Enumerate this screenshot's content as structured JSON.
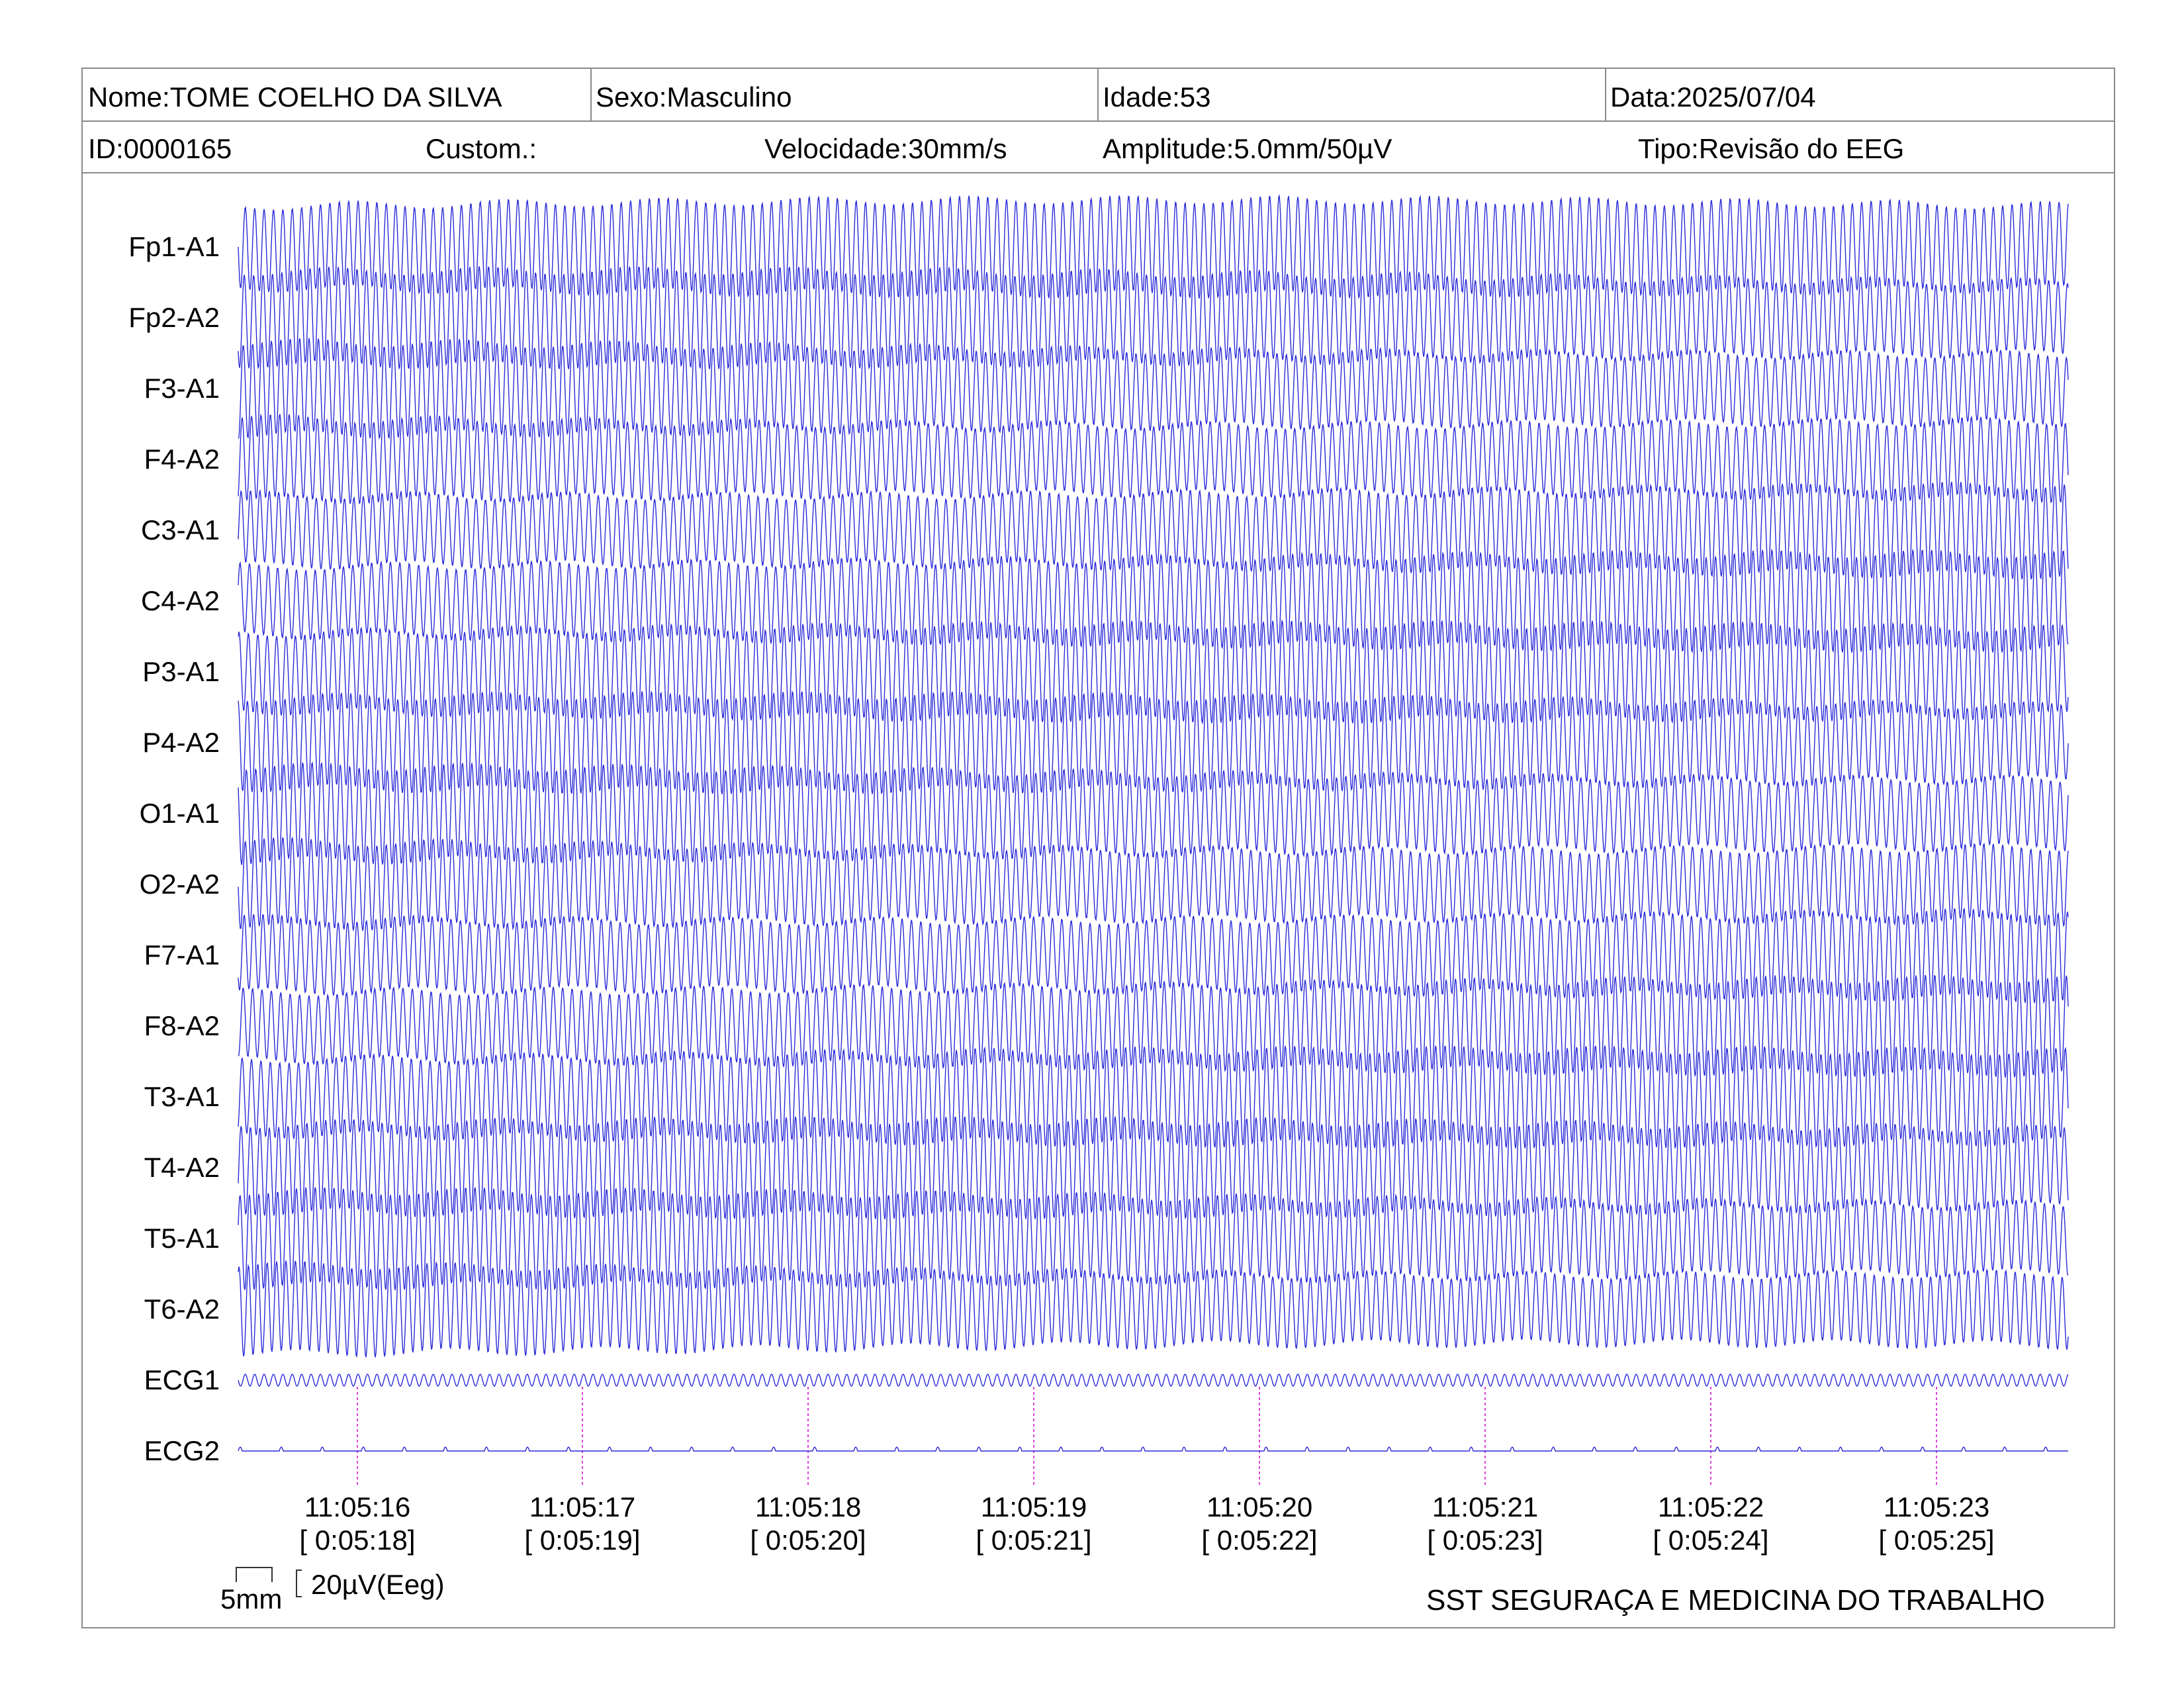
{
  "header": {
    "nome": "Nome:TOME COELHO DA SILVA",
    "sexo": "Sexo:Masculino",
    "idade": "Idade:53",
    "data": "Data:2025/07/04",
    "id": "ID:0000165",
    "custom": "Custom.:",
    "velocidade": "Velocidade:30mm/s",
    "amplitude": "Amplitude:5.0mm/50µV",
    "tipo": "Tipo:Revisão do EEG"
  },
  "channels": [
    "Fp1-A1",
    "Fp2-A2",
    "F3-A1",
    "F4-A2",
    "C3-A1",
    "C4-A2",
    "P3-A1",
    "P4-A2",
    "O1-A1",
    "O2-A2",
    "F7-A1",
    "F8-A2",
    "T3-A1",
    "T4-A2",
    "T5-A1",
    "T6-A2",
    "ECG1",
    "ECG2"
  ],
  "timestamps": [
    {
      "clock": "11:05:16",
      "elapsed": "[ 0:05:18]"
    },
    {
      "clock": "11:05:17",
      "elapsed": "[ 0:05:19]"
    },
    {
      "clock": "11:05:18",
      "elapsed": "[ 0:05:20]"
    },
    {
      "clock": "11:05:19",
      "elapsed": "[ 0:05:21]"
    },
    {
      "clock": "11:05:20",
      "elapsed": "[ 0:05:22]"
    },
    {
      "clock": "11:05:21",
      "elapsed": "[ 0:05:23]"
    },
    {
      "clock": "11:05:22",
      "elapsed": "[ 0:05:24]"
    },
    {
      "clock": "11:05:23",
      "elapsed": "[ 0:05:25]"
    }
  ],
  "scale": {
    "time_scale": "5mm",
    "amp_scale": "20µV(Eeg)"
  },
  "footer": "SST SEGURAÇA E MEDICINA DO TRABALHO",
  "colors": {
    "trace": "#2b2bd8",
    "marker": "#e040e0",
    "border": "#8a8a8a"
  }
}
